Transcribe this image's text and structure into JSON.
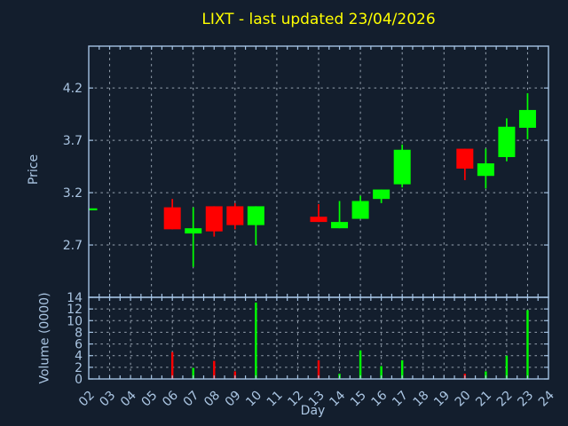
{
  "title": "LIXT - last updated 23/04/2026",
  "chart_data": {
    "type": "candlestick",
    "title": "LIXT - last updated 23/04/2026",
    "xlabel": "Day",
    "price_ylabel": "Price",
    "volume_ylabel": "Volume (0000)",
    "xlim": [
      2,
      24
    ],
    "price_ylim": [
      2.2,
      4.6
    ],
    "volume_ylim": [
      0,
      14
    ],
    "x_tick_labels": [
      "02",
      "03",
      "04",
      "05",
      "06",
      "07",
      "08",
      "09",
      "10",
      "11",
      "12",
      "13",
      "14",
      "15",
      "16",
      "17",
      "18",
      "19",
      "20",
      "21",
      "22",
      "23",
      "24"
    ],
    "price_ticks": [
      2.7,
      3.2,
      3.7,
      4.2
    ],
    "price_tick_labels": [
      "2.7",
      "3.2",
      "3.7",
      "4.2"
    ],
    "volume_ticks": [
      0,
      2,
      4,
      6,
      8,
      10,
      12,
      14
    ],
    "volume_tick_labels": [
      "0",
      "2",
      "4",
      "6",
      "8",
      "10",
      "12",
      "14"
    ],
    "grid": true,
    "grid_style": "dashed",
    "price_grid_day_start": 3,
    "price_grid_day_step": 2,
    "volume_grid_day_start": 3,
    "volume_grid_day_step": 1,
    "colors": {
      "up": "#00ff00",
      "down": "#ff0000",
      "background": "#131e2d",
      "spine": "#a4c2e2",
      "grid": "#adb9c6",
      "tick_label": "#aac5e2",
      "title": "#ffff00"
    },
    "candles": [
      {
        "day": 2,
        "open": 3.05,
        "high": 3.05,
        "low": 3.05,
        "close": 3.05
      },
      {
        "day": 6,
        "open": 3.06,
        "high": 3.14,
        "low": 2.85,
        "close": 2.85
      },
      {
        "day": 7,
        "open": 2.81,
        "high": 3.06,
        "low": 2.49,
        "close": 2.86
      },
      {
        "day": 8,
        "open": 3.07,
        "high": 3.07,
        "low": 2.78,
        "close": 2.83
      },
      {
        "day": 9,
        "open": 3.07,
        "high": 3.1,
        "low": 2.85,
        "close": 2.89
      },
      {
        "day": 10,
        "open": 2.89,
        "high": 3.07,
        "low": 2.7,
        "close": 3.07
      },
      {
        "day": 13,
        "open": 2.97,
        "high": 3.09,
        "low": 2.92,
        "close": 2.92
      },
      {
        "day": 14,
        "open": 2.86,
        "high": 3.12,
        "low": 2.86,
        "close": 2.92
      },
      {
        "day": 15,
        "open": 2.95,
        "high": 3.17,
        "low": 2.95,
        "close": 3.12
      },
      {
        "day": 16,
        "open": 3.14,
        "high": 3.23,
        "low": 3.1,
        "close": 3.23
      },
      {
        "day": 17,
        "open": 3.28,
        "high": 3.66,
        "low": 3.25,
        "close": 3.61
      },
      {
        "day": 20,
        "open": 3.62,
        "high": 3.62,
        "low": 3.32,
        "close": 3.43
      },
      {
        "day": 21,
        "open": 3.36,
        "high": 3.62,
        "low": 3.24,
        "close": 3.48
      },
      {
        "day": 22,
        "open": 3.54,
        "high": 3.91,
        "low": 3.5,
        "close": 3.83
      },
      {
        "day": 23,
        "open": 3.82,
        "high": 4.15,
        "low": 3.71,
        "close": 3.99
      }
    ],
    "volumes": [
      {
        "day": 6,
        "value": 4.6,
        "dir": "down"
      },
      {
        "day": 7,
        "value": 1.9,
        "dir": "up"
      },
      {
        "day": 8,
        "value": 3.1,
        "dir": "down"
      },
      {
        "day": 9,
        "value": 1.3,
        "dir": "down"
      },
      {
        "day": 10,
        "value": 13.1,
        "dir": "up"
      },
      {
        "day": 13,
        "value": 3.2,
        "dir": "down"
      },
      {
        "day": 14,
        "value": 0.9,
        "dir": "up"
      },
      {
        "day": 15,
        "value": 4.9,
        "dir": "up"
      },
      {
        "day": 16,
        "value": 2.2,
        "dir": "up"
      },
      {
        "day": 17,
        "value": 3.2,
        "dir": "up"
      },
      {
        "day": 20,
        "value": 0.9,
        "dir": "down"
      },
      {
        "day": 21,
        "value": 1.3,
        "dir": "up"
      },
      {
        "day": 22,
        "value": 4.0,
        "dir": "up"
      },
      {
        "day": 23,
        "value": 11.8,
        "dir": "up"
      }
    ]
  }
}
